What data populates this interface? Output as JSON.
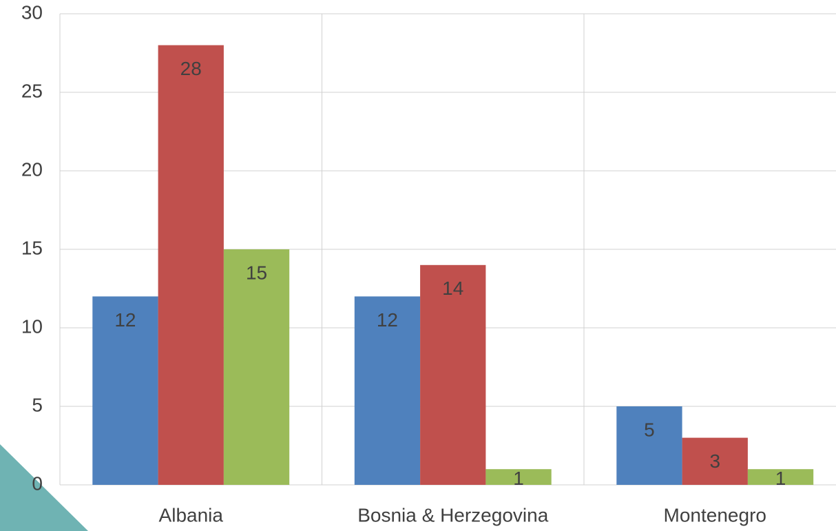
{
  "chart_data": {
    "type": "bar",
    "categories": [
      "Albania",
      "Bosnia & Herzegovina",
      "Montenegro"
    ],
    "series": [
      {
        "color": "#4f81bd",
        "values": [
          12,
          12,
          5
        ]
      },
      {
        "color": "#c0504d",
        "values": [
          28,
          14,
          3
        ]
      },
      {
        "color": "#9bbb59",
        "values": [
          15,
          1,
          1
        ]
      }
    ],
    "ylim": [
      0,
      30
    ],
    "yticks": [
      0,
      5,
      10,
      15,
      20,
      25,
      30
    ],
    "grid": true
  }
}
